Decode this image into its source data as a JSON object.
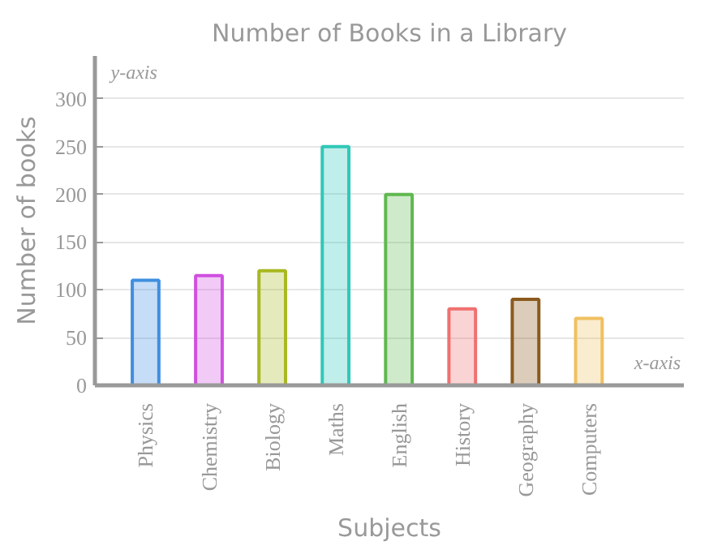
{
  "chart_data": {
    "type": "bar",
    "title": "Number of Books in a Library",
    "xlabel": "Subjects",
    "ylabel": "Number of books",
    "categories": [
      "Physics",
      "Chemistry",
      "Biology",
      "Maths",
      "English",
      "History",
      "Geography",
      "Computers"
    ],
    "values": [
      110,
      115,
      120,
      250,
      200,
      80,
      90,
      70
    ],
    "colors": [
      "#3f8fe0",
      "#d050e0",
      "#a8b820",
      "#30c8b8",
      "#60b850",
      "#f07070",
      "#8b5a1e",
      "#f0c060"
    ],
    "ylim": [
      0,
      345
    ],
    "yticks": [
      0,
      50,
      100,
      150,
      200,
      250,
      300
    ],
    "grid": "y",
    "annotations": [
      "y-axis",
      "x-axis"
    ]
  }
}
